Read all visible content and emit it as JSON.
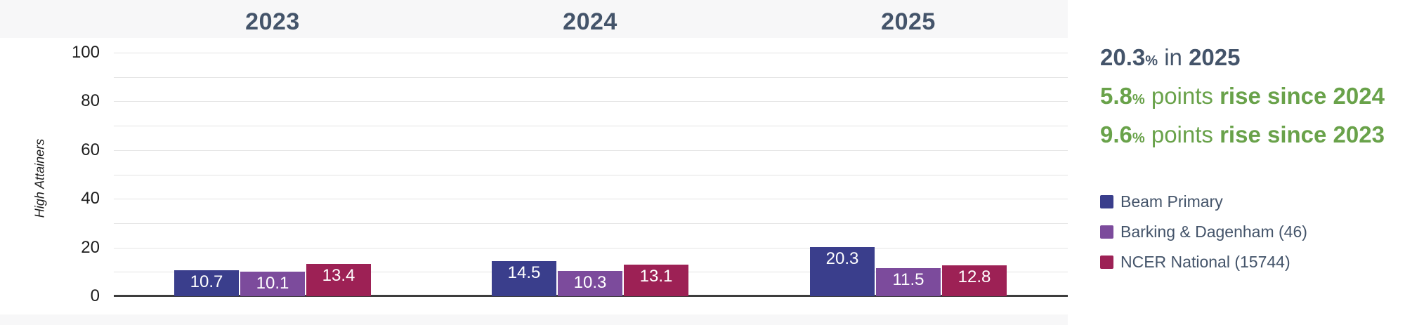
{
  "chart_data": {
    "type": "bar",
    "categories": [
      "2023",
      "2024",
      "2025"
    ],
    "series": [
      {
        "name": "Beam Primary",
        "color": "#3a3e8c",
        "values": [
          10.7,
          14.5,
          20.3
        ]
      },
      {
        "name": "Barking & Dagenham (46)",
        "color": "#7c4b9c",
        "values": [
          10.1,
          10.3,
          11.5
        ]
      },
      {
        "name": "NCER National (15744)",
        "color": "#9d2155",
        "values": [
          13.4,
          13.1,
          12.8
        ]
      }
    ],
    "xlabel": "",
    "ylabel": "High Attainers",
    "ylim": [
      0,
      100
    ],
    "yticks": [
      0,
      20,
      40,
      60,
      80,
      100
    ],
    "minor_gridline_step": 10,
    "grid": true,
    "bar_label_color": "#ffffff",
    "legend_position": "right"
  },
  "stats": [
    {
      "value": "20.3",
      "unit": "%",
      "text": " in ",
      "emph": "2025",
      "color": "#44546a"
    },
    {
      "value": "5.8",
      "unit": "%",
      "text": " points ",
      "emph": "rise since 2024",
      "color": "#69a24a"
    },
    {
      "value": "9.6",
      "unit": "%",
      "text": " points ",
      "emph": "rise since 2023",
      "color": "#69a24a"
    }
  ],
  "colors": {
    "year_title": "#44546a",
    "legend_text": "#44546a",
    "band_background": "#f7f7f8",
    "gridline": "#e4e4e4",
    "axis_line": "#3d3d3d",
    "tick_label": "#1d1d1d"
  }
}
